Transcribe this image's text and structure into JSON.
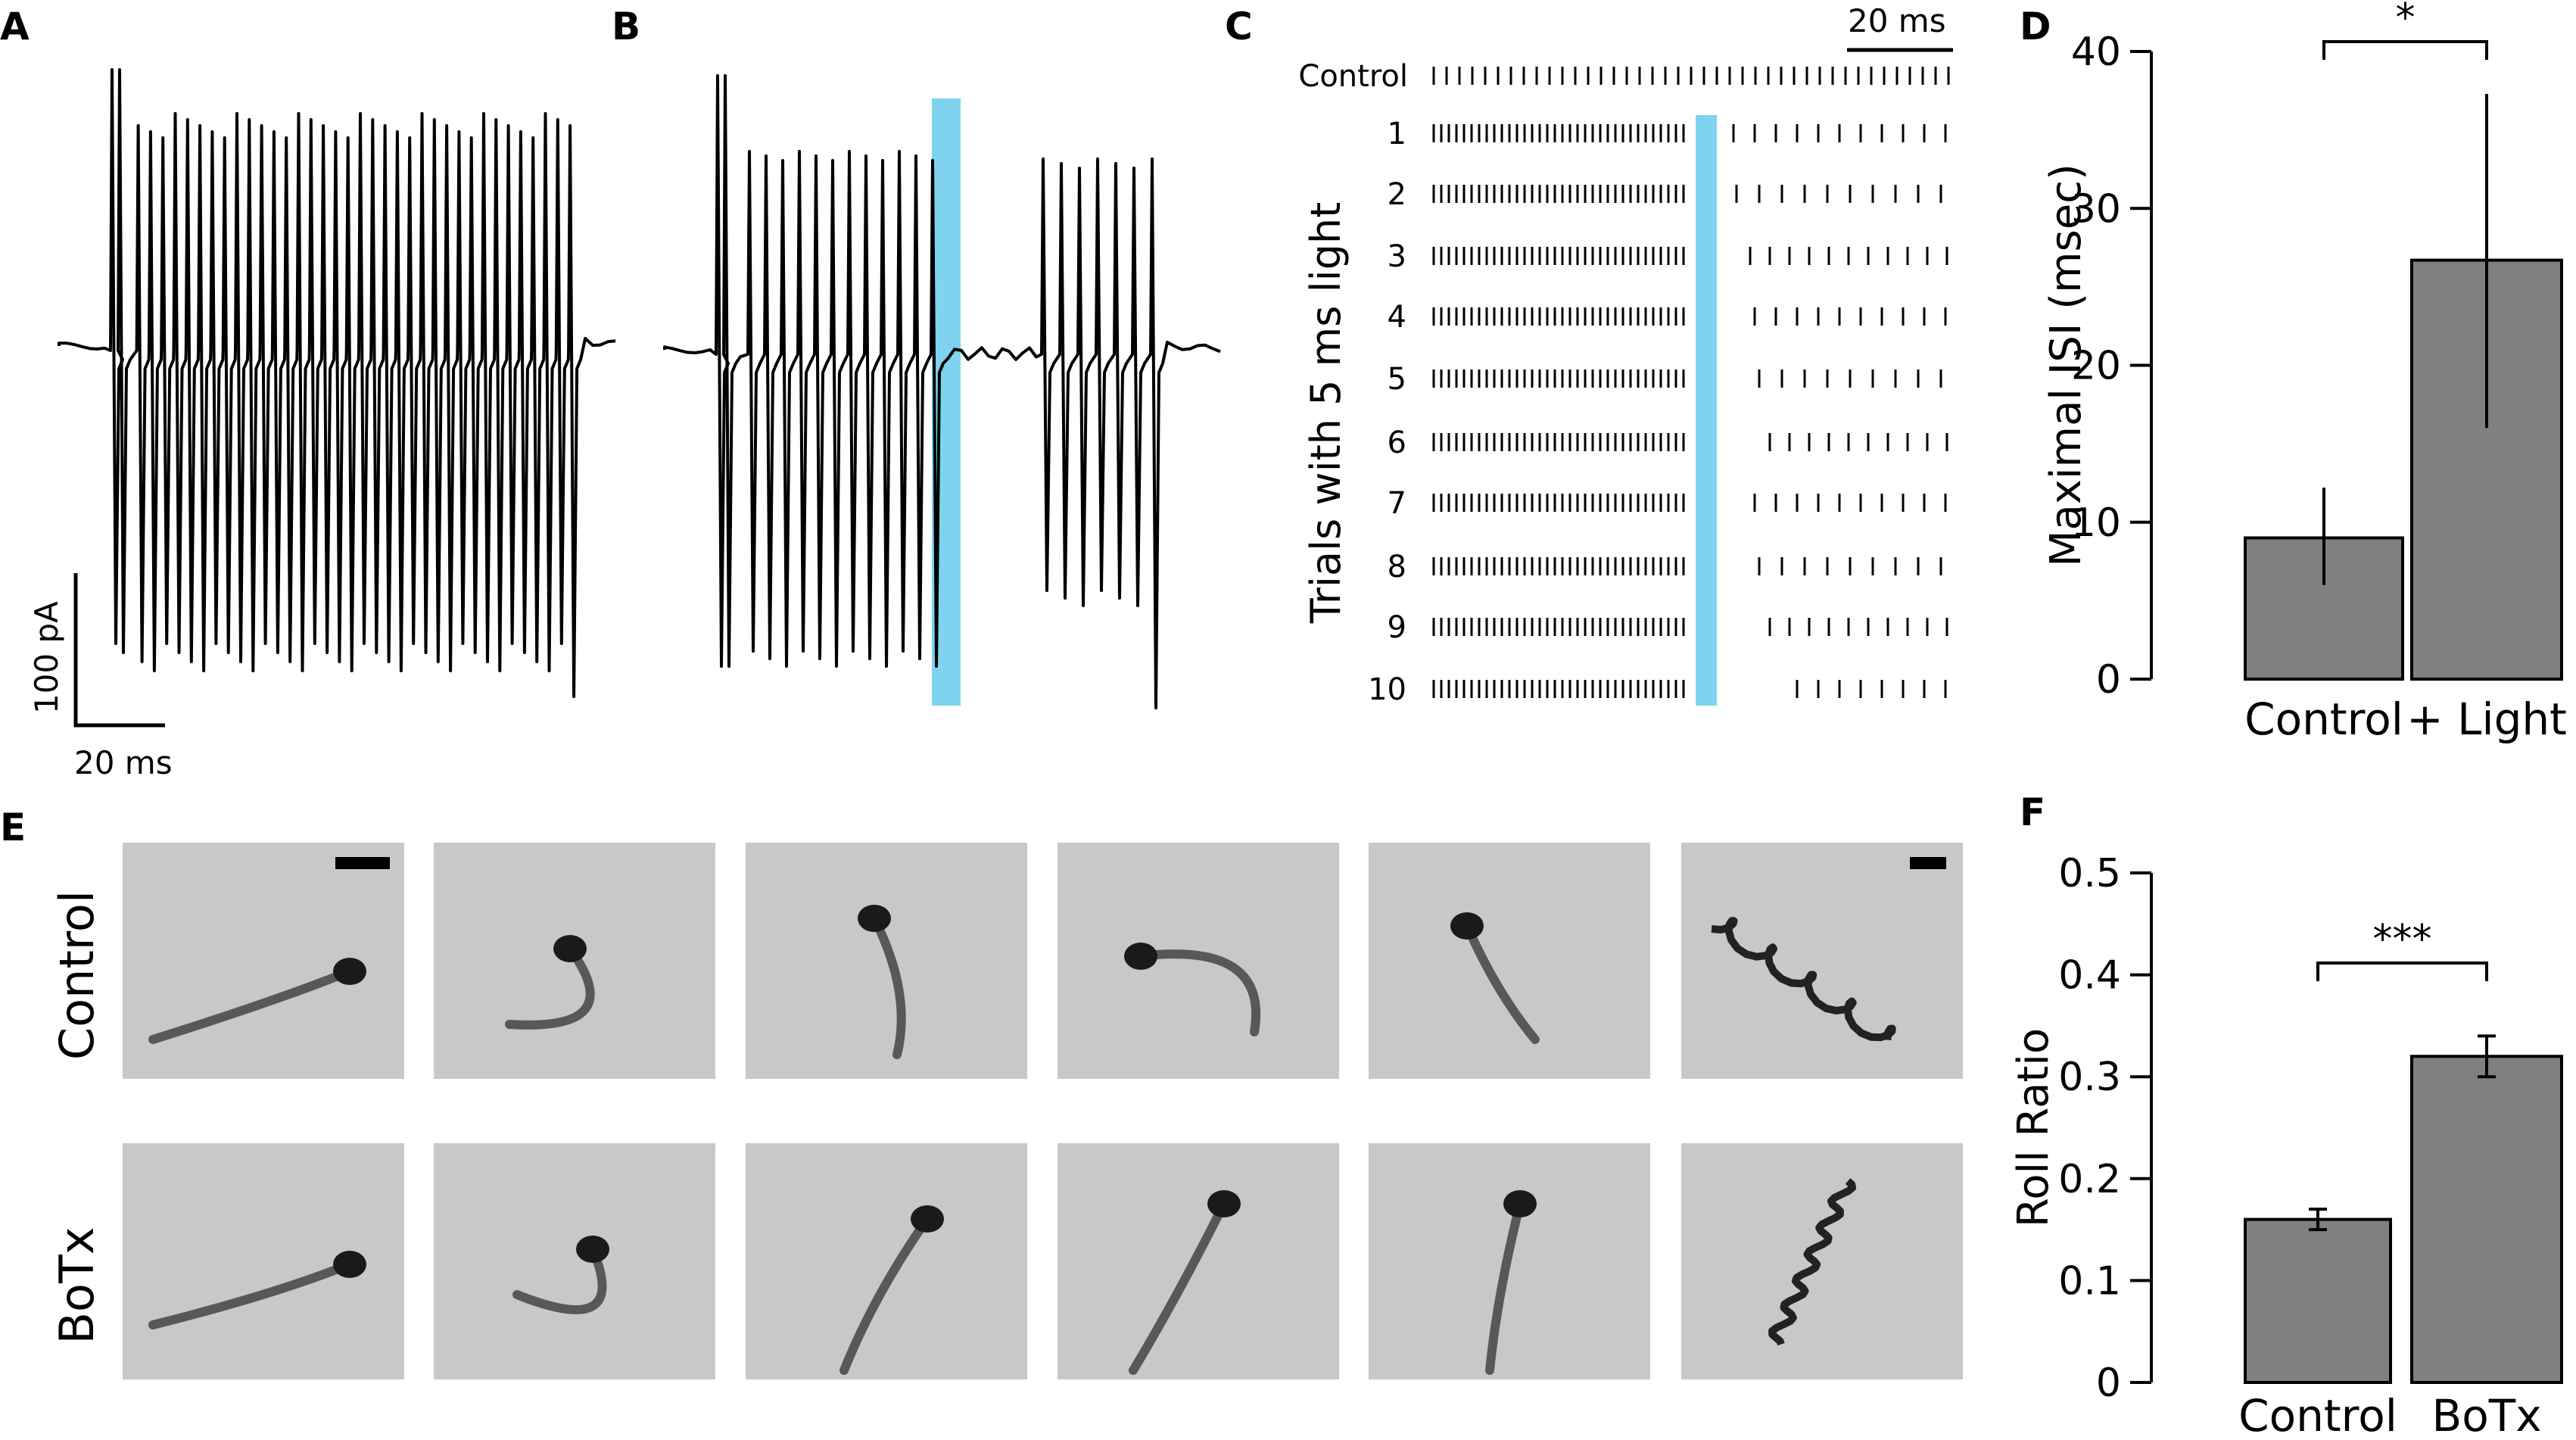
{
  "panel_labels": {
    "A": "A",
    "B": "B",
    "C": "C",
    "D": "D",
    "E": "E",
    "F": "F"
  },
  "scalebar_A": {
    "y_label": "100 pA",
    "x_label": "20 ms"
  },
  "raster": {
    "scalebar_label": "20 ms",
    "y_title": "Trials with 5 ms light",
    "row_labels": [
      "Control",
      "1",
      "2",
      "3",
      "4",
      "5",
      "6",
      "7",
      "8",
      "9",
      "10"
    ]
  },
  "rows_E": [
    "Control",
    "BoTx"
  ],
  "colors": {
    "light": "#7fd3ee",
    "bar": "#808080",
    "trace": "#000000",
    "photo_bg": "#c9c9c9"
  },
  "chart_data": [
    {
      "type": "bar",
      "categories": [
        "Control",
        "+ Light"
      ],
      "values": [
        9,
        26.7
      ],
      "errors": [
        [
          6,
          12.2
        ],
        [
          16,
          37.3
        ]
      ],
      "ylabel": "Maximal ISI (msec)",
      "ylim": [
        0,
        40
      ],
      "yticks": [
        0,
        10,
        20,
        30,
        40
      ],
      "tick_labels": [
        "0",
        "10",
        "20",
        "30",
        "40"
      ],
      "significance": "*"
    },
    {
      "type": "bar",
      "categories": [
        "Control",
        "BoTx"
      ],
      "values": [
        0.16,
        0.32
      ],
      "errors": [
        [
          0.15,
          0.17
        ],
        [
          0.3,
          0.34
        ]
      ],
      "ylabel": "Roll Ratio",
      "ylim": [
        0,
        0.5
      ],
      "yticks": [
        0,
        0.1,
        0.2,
        0.3,
        0.4,
        0.5
      ],
      "tick_labels": [
        "0",
        "0.1",
        "0.2",
        "0.3",
        "0.4",
        "0.5"
      ],
      "significance": "***"
    }
  ]
}
